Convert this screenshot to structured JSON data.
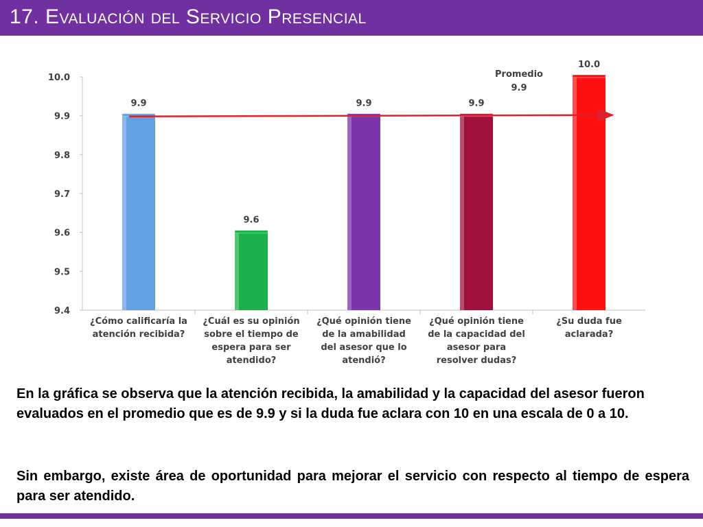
{
  "header": {
    "title": "17. Evaluación del Servicio Presencial"
  },
  "chart_data": {
    "type": "bar",
    "categories": [
      [
        "¿Cómo calificaría la",
        "atención recibida?"
      ],
      [
        "¿Cuál es su opinión",
        "sobre el tiempo de",
        "espera para ser",
        "atendido?"
      ],
      [
        "¿Qué opinión tiene",
        "de la amabilidad",
        "del asesor que lo",
        "atendió?"
      ],
      [
        "¿Qué opinión tiene",
        "de la capacidad del",
        "asesor para",
        "resolver dudas?"
      ],
      [
        "¿Su duda fue",
        "aclarada?"
      ]
    ],
    "values": [
      9.9,
      9.6,
      9.9,
      9.9,
      10.0
    ],
    "value_labels": [
      "9.9",
      "9.6",
      "9.9",
      "9.9",
      "10.0"
    ],
    "colors": [
      "#62a0e0",
      "#1bb04a",
      "#7a35a8",
      "#a0103a",
      "#ff1010"
    ],
    "yticks": [
      "10.0",
      "9.9",
      "9.8",
      "9.7",
      "9.6",
      "9.5",
      "9.4"
    ],
    "ylim": [
      9.4,
      10.0
    ],
    "average": {
      "label_line1": "Promedio",
      "label_line2": "9.9",
      "value": 9.9,
      "color": "#e0202a"
    },
    "xlabel": "",
    "ylabel": "",
    "grid": false
  },
  "body": {
    "paragraph1": "En la gráfica se observa que la atención recibida, la amabilidad y la capacidad del asesor fueron evaluados en el promedio que es de 9.9 y si la duda fue aclara con 10 en una escala de 0 a 10.",
    "paragraph2": "Sin embargo, existe área de oportunidad para mejorar el servicio con respecto al tiempo de espera para ser atendido."
  },
  "colors": {
    "header": "#7030a0",
    "text": "#000000"
  }
}
